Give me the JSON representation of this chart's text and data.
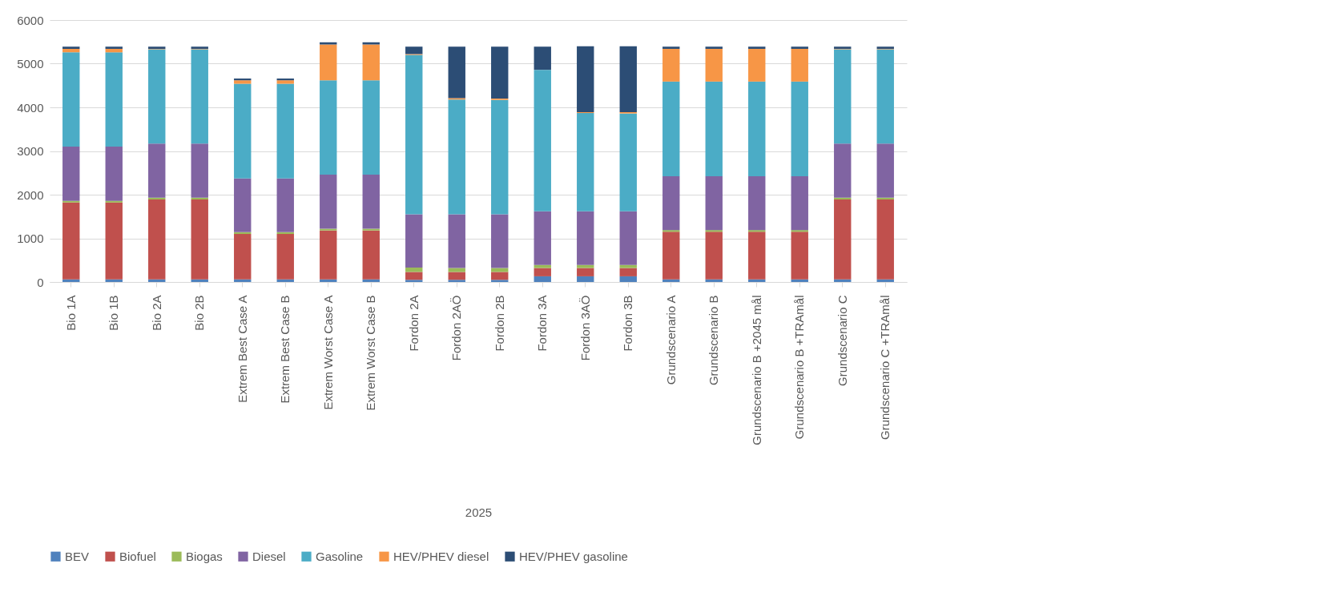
{
  "chart_data": {
    "type": "bar",
    "stacked": true,
    "xlabel": "2025",
    "categories": [
      "Bio 1A",
      "Bio 1B",
      "Bio 2A",
      "Bio 2B",
      "Extrem Best Case A",
      "Extrem Best Case B",
      "Extrem Worst Case A",
      "Extrem Worst Case B",
      "Fordon 2A",
      "Fordon 2AÖ",
      "Fordon 2B",
      "Fordon 3A",
      "Fordon 3AÖ",
      "Fordon 3B",
      "Grundscenario A",
      "Grundscenario B",
      "Grundscenario B +2045 mål",
      "Grundscenario B +TRAmål",
      "Grundscenario C",
      "Grundscenario C +TRAmål"
    ],
    "series": [
      {
        "name": "BEV",
        "color": "#4f81bd",
        "values": [
          60,
          60,
          60,
          60,
          60,
          60,
          60,
          60,
          50,
          50,
          50,
          130,
          130,
          130,
          60,
          60,
          60,
          60,
          60,
          60
        ]
      },
      {
        "name": "Biofuel",
        "color": "#c0504d",
        "values": [
          1760,
          1760,
          1830,
          1830,
          1040,
          1040,
          1120,
          1120,
          180,
          180,
          180,
          190,
          190,
          190,
          1090,
          1090,
          1090,
          1090,
          1830,
          1830
        ]
      },
      {
        "name": "Biogas",
        "color": "#9bbb59",
        "values": [
          40,
          40,
          40,
          40,
          40,
          40,
          40,
          40,
          100,
          90,
          90,
          70,
          70,
          70,
          40,
          40,
          40,
          40,
          40,
          40
        ]
      },
      {
        "name": "Diesel",
        "color": "#8064a2",
        "values": [
          1240,
          1240,
          1240,
          1240,
          1230,
          1230,
          1240,
          1240,
          1220,
          1230,
          1230,
          1230,
          1230,
          1230,
          1230,
          1230,
          1230,
          1230,
          1240,
          1240
        ]
      },
      {
        "name": "Gasoline",
        "color": "#4bacc6",
        "values": [
          2160,
          2160,
          2160,
          2160,
          2170,
          2170,
          2160,
          2160,
          3650,
          2630,
          2620,
          3240,
          2250,
          2240,
          2170,
          2170,
          2170,
          2170,
          2160,
          2160
        ]
      },
      {
        "name": "HEV/PHEV diesel",
        "color": "#f79646",
        "values": [
          80,
          80,
          10,
          10,
          80,
          80,
          820,
          820,
          20,
          30,
          30,
          null,
          20,
          30,
          750,
          750,
          750,
          750,
          10,
          10
        ]
      },
      {
        "name": "HEV/PHEV gasoline",
        "color": "#2c4d75",
        "values": [
          50,
          50,
          50,
          50,
          40,
          40,
          50,
          50,
          170,
          1180,
          1190,
          530,
          1510,
          1510,
          50,
          50,
          50,
          50,
          50,
          50
        ]
      }
    ],
    "ylim": [
      0,
      6000
    ],
    "yticks": [
      0,
      1000,
      2000,
      3000,
      4000,
      5000,
      6000
    ],
    "grid": "y",
    "legend": "bottom"
  }
}
